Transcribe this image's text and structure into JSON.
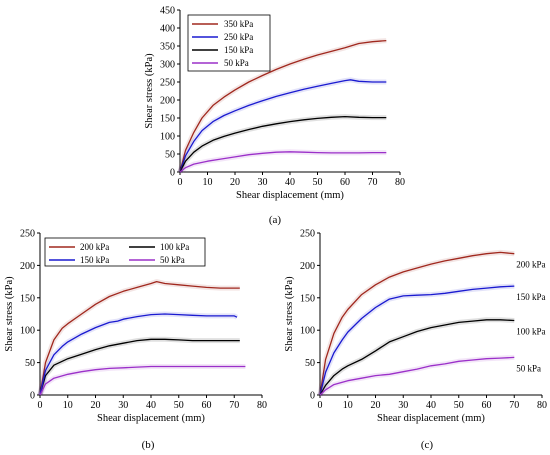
{
  "chart_data": [
    {
      "type": "line",
      "panel_label": "(a)",
      "xlabel": "Shear displacement (mm)",
      "ylabel": "Shear stress (kPa)",
      "xlim": [
        0,
        80
      ],
      "ylim": [
        0,
        450
      ],
      "xticks": [
        0,
        10,
        20,
        30,
        40,
        50,
        60,
        70,
        80
      ],
      "yticks": [
        0,
        50,
        100,
        150,
        200,
        250,
        300,
        350,
        400,
        450
      ],
      "legend": "top-left",
      "series": [
        {
          "name": "350 kPa",
          "color": "#a0281e",
          "x": [
            0,
            2,
            5,
            8,
            12,
            16,
            20,
            25,
            30,
            35,
            40,
            45,
            50,
            55,
            60,
            65,
            70,
            75
          ],
          "y": [
            0,
            60,
            110,
            150,
            185,
            208,
            228,
            250,
            268,
            285,
            300,
            313,
            325,
            335,
            345,
            357,
            362,
            365
          ]
        },
        {
          "name": "250 kPa",
          "color": "#1a1ad0",
          "x": [
            0,
            2,
            5,
            8,
            12,
            16,
            20,
            25,
            30,
            35,
            40,
            45,
            50,
            55,
            60,
            62,
            65,
            70,
            75
          ],
          "y": [
            0,
            45,
            85,
            115,
            140,
            157,
            170,
            185,
            198,
            210,
            220,
            230,
            238,
            246,
            254,
            256,
            252,
            250,
            250
          ]
        },
        {
          "name": "150 kPa",
          "color": "#000000",
          "x": [
            0,
            2,
            5,
            8,
            12,
            16,
            20,
            25,
            30,
            35,
            40,
            45,
            50,
            55,
            60,
            65,
            70,
            75
          ],
          "y": [
            0,
            30,
            55,
            72,
            88,
            99,
            108,
            118,
            127,
            134,
            140,
            145,
            149,
            152,
            154,
            152,
            151,
            151
          ]
        },
        {
          "name": "50 kPa",
          "color": "#9b30c9",
          "x": [
            0,
            2,
            5,
            10,
            15,
            20,
            25,
            30,
            35,
            40,
            45,
            50,
            55,
            60,
            65,
            70,
            75
          ],
          "y": [
            0,
            12,
            22,
            30,
            36,
            42,
            48,
            52,
            55,
            56,
            55,
            54,
            53,
            53,
            53,
            54,
            54
          ]
        }
      ]
    },
    {
      "type": "line",
      "panel_label": "(b)",
      "xlabel": "Shear displacement (mm)",
      "ylabel": "Shear stress (kPa)",
      "xlim": [
        0,
        80
      ],
      "ylim": [
        0,
        250
      ],
      "xticks": [
        0,
        10,
        20,
        30,
        40,
        50,
        60,
        70,
        80
      ],
      "yticks": [
        0,
        50,
        100,
        150,
        200,
        250
      ],
      "legend": "top",
      "series": [
        {
          "name": "200 kPa",
          "color": "#a0281e",
          "x": [
            0,
            2,
            5,
            8,
            10,
            15,
            20,
            25,
            30,
            35,
            40,
            42,
            45,
            50,
            55,
            60,
            65,
            70,
            72
          ],
          "y": [
            0,
            50,
            85,
            103,
            110,
            125,
            140,
            152,
            160,
            166,
            172,
            175,
            172,
            170,
            168,
            166,
            165,
            165,
            165
          ]
        },
        {
          "name": "100 kPa",
          "color": "#000000",
          "x": [
            0,
            2,
            5,
            10,
            15,
            20,
            25,
            30,
            35,
            40,
            45,
            50,
            55,
            60,
            65,
            70,
            72
          ],
          "y": [
            0,
            30,
            46,
            56,
            63,
            70,
            76,
            80,
            84,
            86,
            86,
            85,
            84,
            84,
            84,
            84,
            84
          ]
        },
        {
          "name": "150 kPa",
          "color": "#1a1ad0",
          "x": [
            0,
            2,
            5,
            8,
            10,
            15,
            20,
            25,
            28,
            30,
            35,
            40,
            45,
            50,
            55,
            60,
            65,
            70,
            71
          ],
          "y": [
            0,
            38,
            62,
            75,
            82,
            94,
            104,
            112,
            114,
            117,
            121,
            124,
            125,
            124,
            123,
            122,
            122,
            122,
            120
          ]
        },
        {
          "name": "50 kPa",
          "color": "#9b30c9",
          "x": [
            0,
            2,
            5,
            10,
            15,
            20,
            25,
            30,
            35,
            40,
            45,
            50,
            55,
            60,
            65,
            70,
            74
          ],
          "y": [
            0,
            17,
            26,
            32,
            36,
            39,
            41,
            42,
            43,
            44,
            44,
            44,
            44,
            44,
            44,
            44,
            44
          ]
        }
      ]
    },
    {
      "type": "line",
      "panel_label": "(c)",
      "xlabel": "Shear displacement (mm)",
      "ylabel": "Shear stress (kPa)",
      "xlim": [
        0,
        80
      ],
      "ylim": [
        0,
        250
      ],
      "xticks": [
        0,
        10,
        20,
        30,
        40,
        50,
        60,
        70,
        80
      ],
      "yticks": [
        0,
        50,
        100,
        150,
        200,
        250
      ],
      "series_labels_inline": true,
      "series": [
        {
          "name": "200 kPa",
          "color": "#a0281e",
          "x": [
            0,
            2,
            5,
            8,
            10,
            15,
            20,
            25,
            30,
            35,
            40,
            45,
            50,
            55,
            60,
            65,
            70
          ],
          "y": [
            0,
            55,
            95,
            120,
            132,
            155,
            170,
            182,
            190,
            196,
            202,
            207,
            211,
            215,
            218,
            220,
            218
          ]
        },
        {
          "name": "150 kPa",
          "color": "#1a1ad0",
          "x": [
            0,
            2,
            5,
            8,
            10,
            15,
            20,
            25,
            30,
            35,
            40,
            45,
            50,
            55,
            60,
            65,
            70
          ],
          "y": [
            0,
            35,
            65,
            85,
            97,
            118,
            135,
            148,
            153,
            154,
            155,
            157,
            160,
            163,
            165,
            167,
            168
          ]
        },
        {
          "name": "100 kPa",
          "color": "#000000",
          "x": [
            0,
            2,
            5,
            8,
            10,
            15,
            20,
            25,
            30,
            35,
            40,
            45,
            50,
            55,
            60,
            65,
            70
          ],
          "y": [
            0,
            15,
            30,
            40,
            45,
            55,
            68,
            82,
            90,
            98,
            104,
            108,
            112,
            114,
            116,
            116,
            115
          ]
        },
        {
          "name": "50 kPa",
          "color": "#9b30c9",
          "x": [
            0,
            2,
            5,
            10,
            15,
            20,
            25,
            30,
            35,
            40,
            45,
            50,
            55,
            60,
            65,
            70
          ],
          "y": [
            0,
            8,
            16,
            22,
            26,
            30,
            32,
            36,
            40,
            45,
            48,
            52,
            54,
            56,
            57,
            58
          ]
        }
      ]
    }
  ]
}
